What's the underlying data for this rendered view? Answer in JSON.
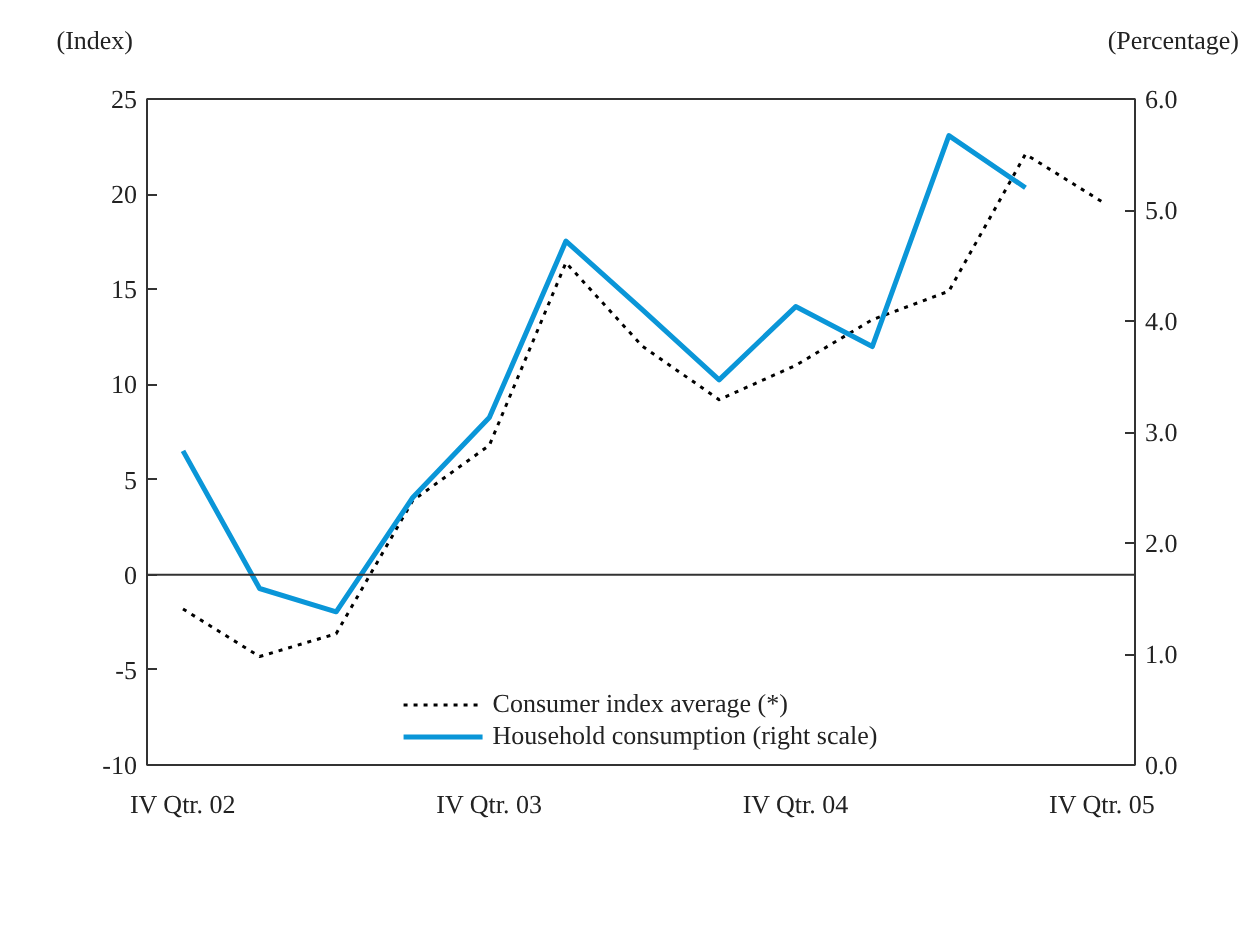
{
  "chart_data": {
    "type": "line",
    "ylabel": "(Index)",
    "y2label": "(Percentage)",
    "categories": [
      "IV Qtr. 02",
      null,
      null,
      null,
      "IV Qtr. 03",
      null,
      null,
      null,
      "IV Qtr. 04",
      null,
      null,
      null,
      "IV Qtr. 05"
    ],
    "series": [
      {
        "name": "Consumer index average (*)",
        "color": "#000000",
        "line_style": "dotted",
        "values": [
          -1.8,
          -4.3,
          -3.1,
          3.9,
          6.8,
          16.4,
          12.0,
          9.2,
          11.0,
          13.4,
          14.9,
          22.1,
          19.6
        ]
      },
      {
        "name": "Household consumption (right scale)",
        "color": "#0a96d8",
        "axis": "y2",
        "values": [
          2.83,
          1.59,
          1.38,
          2.41,
          3.13,
          4.72,
          4.1,
          3.47,
          4.13,
          3.77,
          5.67,
          5.2,
          null
        ]
      }
    ],
    "ylim": [
      -10,
      25
    ],
    "yticks": [
      -10,
      -5,
      0,
      5,
      10,
      15,
      20,
      25
    ],
    "y2lim": [
      0,
      6
    ],
    "y2ticks": [
      {
        "value": 0,
        "label": "0.0"
      },
      {
        "value": 1,
        "label": "1.0"
      },
      {
        "value": 2,
        "label": "2.0"
      },
      {
        "value": 3,
        "label": "3.0"
      },
      {
        "value": 4,
        "label": "4.0"
      },
      {
        "value": 5,
        "label": "5.0"
      },
      {
        "value": 6,
        "label": "6.0"
      }
    ],
    "legend": "bottom",
    "ref_lines": [
      {
        "axis": "y",
        "value": 0
      }
    ]
  }
}
